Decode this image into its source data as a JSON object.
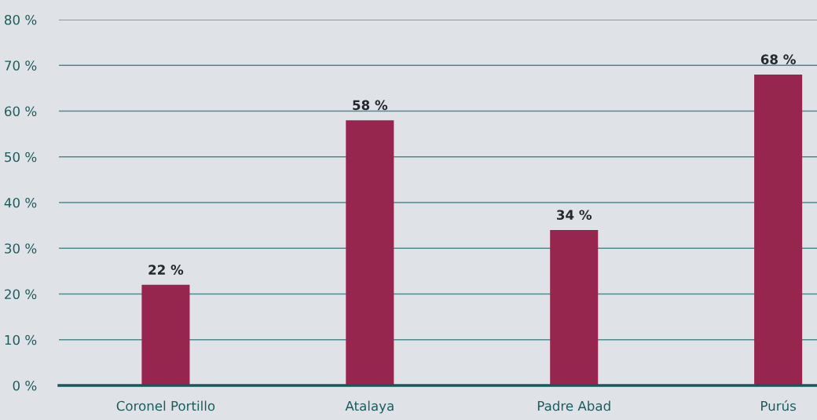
{
  "chart_data": {
    "type": "bar",
    "categories": [
      "Coronel Portillo",
      "Atalaya",
      "Padre Abad",
      "Purús"
    ],
    "values": [
      22,
      58,
      34,
      68
    ],
    "value_labels": [
      "22 %",
      "58 %",
      "34 %",
      "68 %"
    ],
    "color": "#96264e",
    "ylim": [
      0,
      80
    ],
    "yticks": [
      {
        "value": 0,
        "label": "0 %"
      },
      {
        "value": 10,
        "label": "10 %"
      },
      {
        "value": 20,
        "label": "20 %"
      },
      {
        "value": 30,
        "label": "30 %"
      },
      {
        "value": 40,
        "label": "40 %"
      },
      {
        "value": 50,
        "label": "50 %"
      },
      {
        "value": 60,
        "label": "60 %"
      },
      {
        "value": 70,
        "label": "70 %"
      },
      {
        "value": 80,
        "label": "80 %"
      }
    ],
    "grid": "y",
    "legend": false
  }
}
